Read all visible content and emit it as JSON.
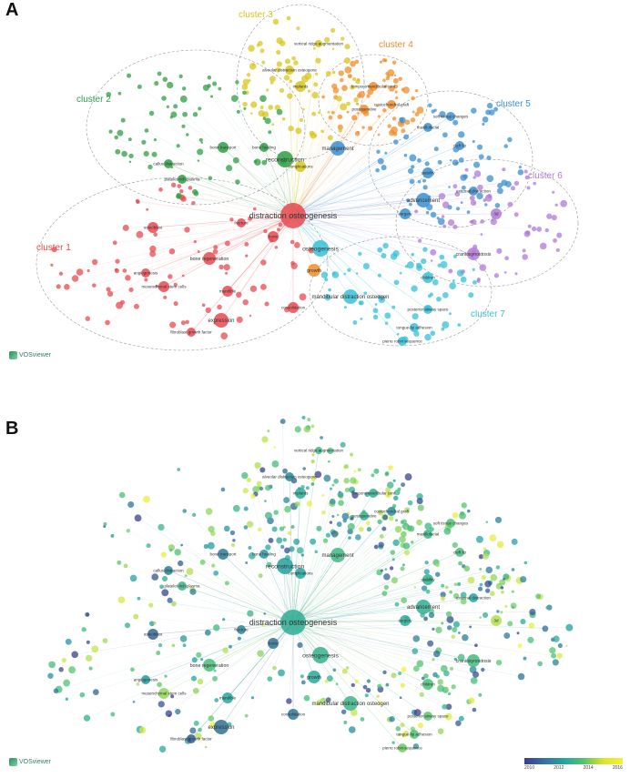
{
  "panels": [
    {
      "letter": "A",
      "logo": "VOSviewer",
      "clusters": [
        {
          "label": "cluster 1",
          "color": "#e8494f"
        },
        {
          "label": "cluster 2",
          "color": "#2f9e44"
        },
        {
          "label": "cluster 3",
          "color": "#d8c51c"
        },
        {
          "label": "cluster 4",
          "color": "#f08c2a"
        },
        {
          "label": "cluster 5",
          "color": "#3a8fd0"
        },
        {
          "label": "cluster 6",
          "color": "#b07ad6"
        },
        {
          "label": "cluster 7",
          "color": "#37c0d8"
        }
      ],
      "nodes": [
        {
          "label": "distraction osteogenesis",
          "cluster": 1
        },
        {
          "label": "osteogenesis",
          "cluster": 7
        },
        {
          "label": "reconstruction",
          "cluster": 2
        },
        {
          "label": "management",
          "cluster": 5
        },
        {
          "label": "mandibular distraction osteogen",
          "cluster": 7
        },
        {
          "label": "growth",
          "cluster": 4
        },
        {
          "label": "expression",
          "cluster": 1
        },
        {
          "label": "bone regeneration",
          "cluster": 1
        },
        {
          "label": "complications",
          "cluster": 3
        },
        {
          "label": "advancement",
          "cluster": 5
        },
        {
          "label": "surgery",
          "cluster": 5
        },
        {
          "label": "craniosynostosis",
          "cluster": 6
        },
        {
          "label": "alveolar distraction osteogene",
          "cluster": 3
        },
        {
          "label": "vertical ridge augmentation",
          "cluster": 3
        },
        {
          "label": "implants",
          "cluster": 3
        },
        {
          "label": "bone transport",
          "cluster": 2
        },
        {
          "label": "temporomandibular joint",
          "cluster": 4
        },
        {
          "label": "osteoblast",
          "cluster": 1
        },
        {
          "label": "consolidation",
          "cluster": 1
        },
        {
          "label": "fibroblast growth factor",
          "cluster": 1
        },
        {
          "label": "pierre robin sequence",
          "cluster": 7
        },
        {
          "label": "tongue-lip adhesion",
          "cluster": 7
        },
        {
          "label": "callus distraction",
          "cluster": 2
        },
        {
          "label": "platelet-rich plasma",
          "cluster": 2
        },
        {
          "label": "bone healing",
          "cluster": 2
        },
        {
          "label": "stability",
          "cluster": 5
        },
        {
          "label": "external distraction",
          "cluster": 5
        },
        {
          "label": "cleft lip",
          "cluster": 5
        },
        {
          "label": "maxillofacial",
          "cluster": 5
        },
        {
          "label": "3d",
          "cluster": 6
        },
        {
          "label": "soft tissue changes",
          "cluster": 5
        },
        {
          "label": "costochondral graft",
          "cluster": 4
        },
        {
          "label": "mesenchymal stem cells",
          "cluster": 1
        },
        {
          "label": "angiogenesis",
          "cluster": 1
        },
        {
          "label": "fracture",
          "cluster": 1
        },
        {
          "label": "bone",
          "cluster": 1
        },
        {
          "label": "mandible",
          "cluster": 1
        },
        {
          "label": "children",
          "cluster": 7
        },
        {
          "label": "posterior airway space",
          "cluster": 7
        },
        {
          "label": "postoperative",
          "cluster": 4
        }
      ]
    },
    {
      "letter": "B",
      "logo": "VOSviewer",
      "colorbar": {
        "ticks": [
          "2010",
          "2012",
          "2014",
          "2016"
        ],
        "colors": [
          "#3b3c8a",
          "#22a5a0",
          "#50c46e",
          "#f5f03a"
        ]
      },
      "nodes": [
        {
          "label": "distraction osteogenesis",
          "year": 2012.5
        },
        {
          "label": "osteogenesis",
          "year": 2012.8
        },
        {
          "label": "reconstruction",
          "year": 2011.9
        },
        {
          "label": "management",
          "year": 2013.2
        },
        {
          "label": "mandibular distraction osteogen",
          "year": 2013.0
        },
        {
          "label": "growth",
          "year": 2012.2
        },
        {
          "label": "expression",
          "year": 2011.0
        },
        {
          "label": "bone regeneration",
          "year": 2013.6
        },
        {
          "label": "complications",
          "year": 2012.0
        },
        {
          "label": "advancement",
          "year": 2012.6
        },
        {
          "label": "surgery",
          "year": 2012.4
        },
        {
          "label": "craniosynostosis",
          "year": 2013.4
        },
        {
          "label": "alveolar distraction osteogene",
          "year": 2011.5
        },
        {
          "label": "vertical ridge augmentation",
          "year": 2013.1
        },
        {
          "label": "implants",
          "year": 2012.3
        },
        {
          "label": "bone transport",
          "year": 2011.2
        },
        {
          "label": "temporomandibular joint",
          "year": 2012.6
        },
        {
          "label": "osteoblast",
          "year": 2010.8
        },
        {
          "label": "consolidation",
          "year": 2011.1
        },
        {
          "label": "fibroblast growth factor",
          "year": 2010.6
        },
        {
          "label": "pierre robin sequence",
          "year": 2014.4
        },
        {
          "label": "tongue-lip adhesion",
          "year": 2013.8
        },
        {
          "label": "callus distraction",
          "year": 2011.3
        },
        {
          "label": "platelet-rich plasma",
          "year": 2012.9
        },
        {
          "label": "bone healing",
          "year": 2011.7
        },
        {
          "label": "stability",
          "year": 2012.7
        },
        {
          "label": "external distraction",
          "year": 2012.1
        },
        {
          "label": "cleft lip",
          "year": 2013.5
        },
        {
          "label": "maxillofacial",
          "year": 2012.9
        },
        {
          "label": "3d",
          "year": 2015.2
        },
        {
          "label": "soft tissue changes",
          "year": 2013.9
        },
        {
          "label": "costochondral graft",
          "year": 2011.6
        },
        {
          "label": "mesenchymal stem cells",
          "year": 2014.8
        },
        {
          "label": "angiogenesis",
          "year": 2011.8
        },
        {
          "label": "fracture",
          "year": 2011.4
        },
        {
          "label": "bone",
          "year": 2011.0
        },
        {
          "label": "mandible",
          "year": 2012.1
        },
        {
          "label": "children",
          "year": 2013.7
        },
        {
          "label": "posterior airway space",
          "year": 2014.1
        },
        {
          "label": "postoperative",
          "year": 2012.8
        }
      ]
    }
  ]
}
